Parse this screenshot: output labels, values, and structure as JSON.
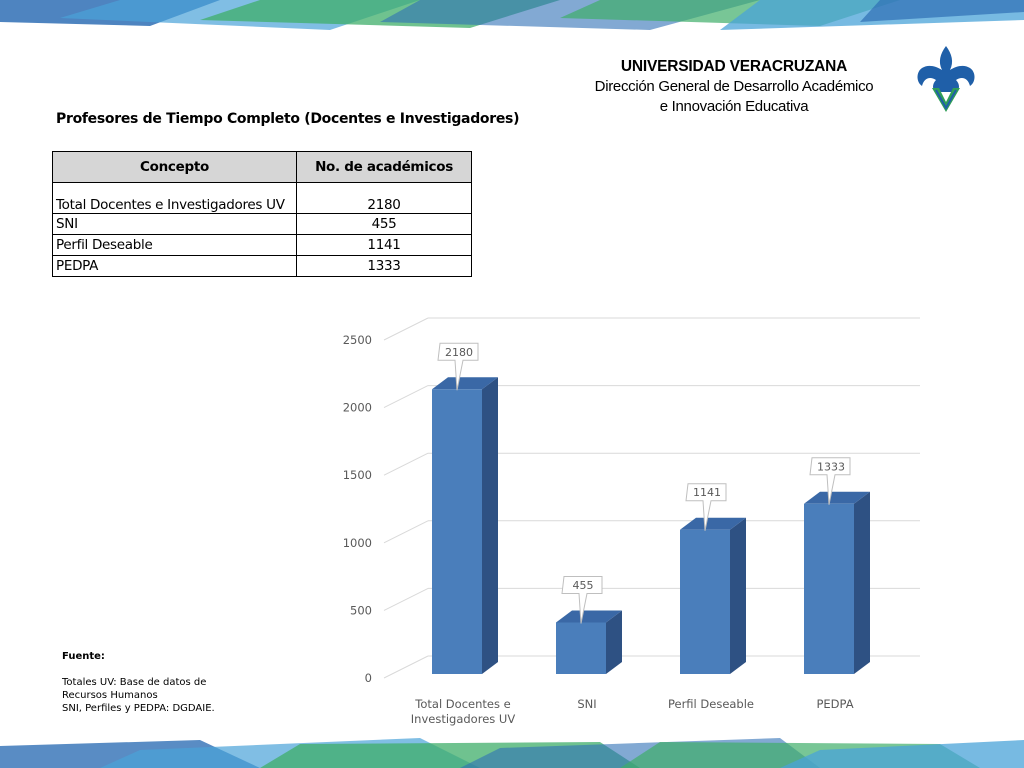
{
  "header": {
    "university": "UNIVERSIDAD VERACRUZANA",
    "department_line1": "Dirección General de Desarrollo Académico",
    "department_line2": "e Innovación Educativa"
  },
  "colors": {
    "bar_front": "#4a7ebb",
    "bar_side": "#2e5183",
    "bar_top": "#3a68a6",
    "band_green": "#3fae6a",
    "band_blue": "#2f6fb5",
    "logo_blue": "#1f5fa8",
    "logo_green": "#2f9e57"
  },
  "table": {
    "title": "Profesores de Tiempo Completo (Docentes e Investigadores)",
    "headers": [
      "Concepto",
      "No. de académicos"
    ],
    "rows": [
      [
        "Total Docentes e Investigadores UV",
        "2180"
      ],
      [
        "SNI",
        "455"
      ],
      [
        "Perfil Deseable",
        "1141"
      ],
      [
        "PEDPA",
        "1333"
      ]
    ]
  },
  "chart_data": {
    "type": "bar",
    "style": "3d-column",
    "categories": [
      "Total Docentes e Investigadores UV",
      "SNI",
      "Perfil Deseable",
      "PEDPA"
    ],
    "category_lines": [
      [
        "Total Docentes e",
        "Investigadores UV"
      ],
      [
        "SNI"
      ],
      [
        "Perfil Deseable"
      ],
      [
        "PEDPA"
      ]
    ],
    "values": [
      2180,
      455,
      1141,
      1333
    ],
    "data_labels": [
      "2180",
      "455",
      "1141",
      "1333"
    ],
    "ylim": [
      0,
      2500
    ],
    "yticks": [
      0,
      500,
      1000,
      1500,
      2000,
      2500
    ],
    "ytick_labels": [
      "0",
      "500",
      "1000",
      "1500",
      "2000",
      "2500"
    ],
    "grid": true,
    "legend": "none",
    "title": "",
    "xlabel": "",
    "ylabel": ""
  },
  "source": {
    "title": "Fuente:",
    "lines": [
      "Totales UV: Base de datos de",
      "Recursos Humanos",
      "SNI, Perfiles y PEDPA: DGDAIE."
    ]
  }
}
